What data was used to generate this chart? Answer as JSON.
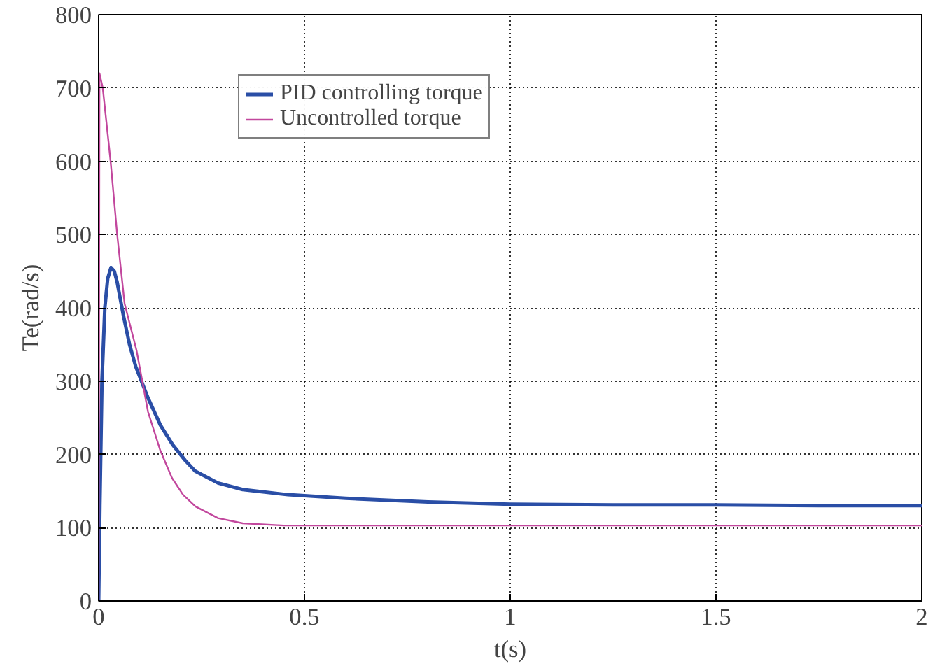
{
  "chart_data": {
    "type": "line",
    "xlabel": "t(s)",
    "ylabel": "Te(rad/s)",
    "xlim": [
      0,
      2
    ],
    "ylim": [
      0,
      800
    ],
    "xticks": [
      0,
      0.5,
      1,
      1.5,
      2
    ],
    "yticks": [
      0,
      100,
      200,
      300,
      400,
      500,
      600,
      700,
      800
    ],
    "grid": true,
    "legend": "top left",
    "line_style": "solid",
    "marker": "none",
    "series": [
      {
        "name": "PID controlling torque",
        "color": "#2a4ea6",
        "x": [
          0,
          0.003,
          0.008,
          0.015,
          0.022,
          0.03,
          0.038,
          0.045,
          0.06,
          0.075,
          0.09,
          0.12,
          0.15,
          0.18,
          0.21,
          0.235,
          0.29,
          0.35,
          0.46,
          0.6,
          0.8,
          1.0,
          1.25,
          1.5,
          1.75,
          2.0
        ],
        "values": [
          0,
          130,
          300,
          400,
          440,
          455,
          450,
          435,
          390,
          350,
          320,
          277,
          240,
          213,
          192,
          177,
          161,
          152,
          145,
          140,
          135,
          132,
          131,
          131,
          130,
          130
        ]
      },
      {
        "name": "Uncontrolled torque",
        "color": "#c2479d",
        "x": [
          0,
          0.002,
          0.01,
          0.029,
          0.045,
          0.063,
          0.092,
          0.12,
          0.15,
          0.178,
          0.205,
          0.235,
          0.29,
          0.35,
          0.45,
          0.6,
          1.0,
          1.5,
          2.0
        ],
        "values": [
          0,
          720,
          700,
          600,
          500,
          406,
          342,
          258,
          205,
          168,
          145,
          129,
          113,
          106,
          103,
          103,
          103,
          103,
          103
        ]
      }
    ]
  }
}
